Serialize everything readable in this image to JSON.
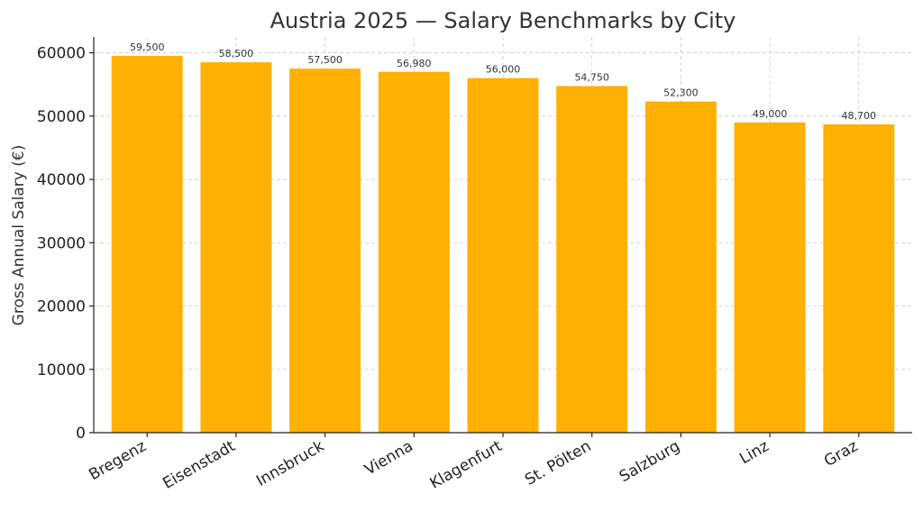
{
  "chart_data": {
    "type": "bar",
    "title": "Austria 2025 — Salary Benchmarks by City",
    "xlabel": "",
    "ylabel": "Gross Annual Salary (€)",
    "categories": [
      "Bregenz",
      "Eisenstadt",
      "Innsbruck",
      "Vienna",
      "Klagenfurt",
      "St. Pölten",
      "Salzburg",
      "Linz",
      "Graz"
    ],
    "values": [
      59500,
      58500,
      57500,
      56980,
      56000,
      54750,
      52300,
      49000,
      48700
    ],
    "data_labels": [
      "59,500",
      "58,500",
      "57,500",
      "56,980",
      "56,000",
      "54,750",
      "52,300",
      "49,000",
      "48,700"
    ],
    "ylim": [
      0,
      62500
    ],
    "yticks": [
      0,
      10000,
      20000,
      30000,
      40000,
      50000,
      60000
    ],
    "ytick_labels": [
      "0",
      "10000",
      "20000",
      "30000",
      "40000",
      "50000",
      "60000"
    ],
    "grid": true,
    "bar_color": "#FFB000"
  }
}
